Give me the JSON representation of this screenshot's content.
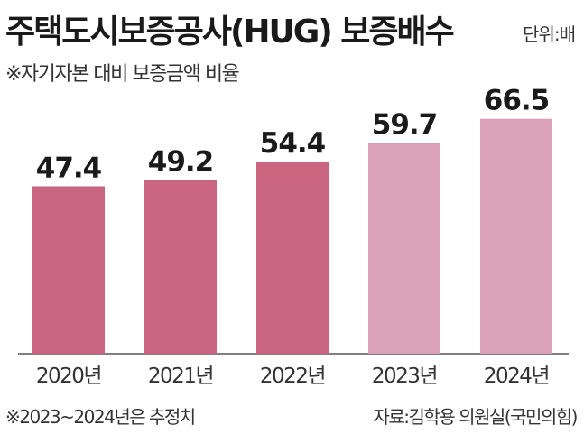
{
  "title": "주택도시보증공사(HUG) 보증배수",
  "unit_note": "단위:배",
  "subtitle": "※자기자본 대비 보증금액 비율",
  "footnote": "※2023~2024년은 추정치",
  "source": "자료:김학용 의원실(국민의힘)",
  "chart_data": {
    "type": "bar",
    "title": "주택도시보증공사(HUG) 보증배수",
    "subtitle": "※자기자본 대비 보증금액 비율",
    "categories": [
      "2020년",
      "2021년",
      "2022년",
      "2023년",
      "2024년"
    ],
    "values": [
      47.4,
      49.2,
      54.4,
      59.7,
      66.5
    ],
    "value_labels": [
      "47.4",
      "49.2",
      "54.4",
      "59.7",
      "66.5"
    ],
    "ylim": [
      0,
      70
    ],
    "grid": false,
    "colors": [
      "#c9657f",
      "#c9657f",
      "#c9657f",
      "#daa1b8",
      "#daa1b8"
    ],
    "axis_color": "#555555"
  }
}
